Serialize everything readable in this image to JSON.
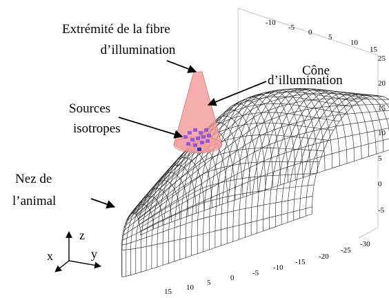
{
  "annotations": {
    "fiber_tip": [
      "Extrémité de la fibre",
      "d’illumination"
    ],
    "cone": [
      "Cône",
      "d’illumination"
    ],
    "sources": [
      "Sources",
      "isotropes"
    ],
    "nose": [
      "Nez de",
      "l’animal"
    ]
  },
  "axes": {
    "top_ticks": [
      "-10",
      "-5",
      "0",
      "5",
      "10",
      "15"
    ],
    "right_ticks": [
      "25",
      "20",
      "15",
      "10",
      "5",
      "0",
      "-5"
    ],
    "bottom_ticks": [
      "15",
      "10",
      "5",
      "0",
      "-5",
      "-10",
      "-15",
      "-20",
      "-25",
      "-30"
    ],
    "labels": {
      "x": "x",
      "y": "y",
      "z": "z"
    }
  }
}
